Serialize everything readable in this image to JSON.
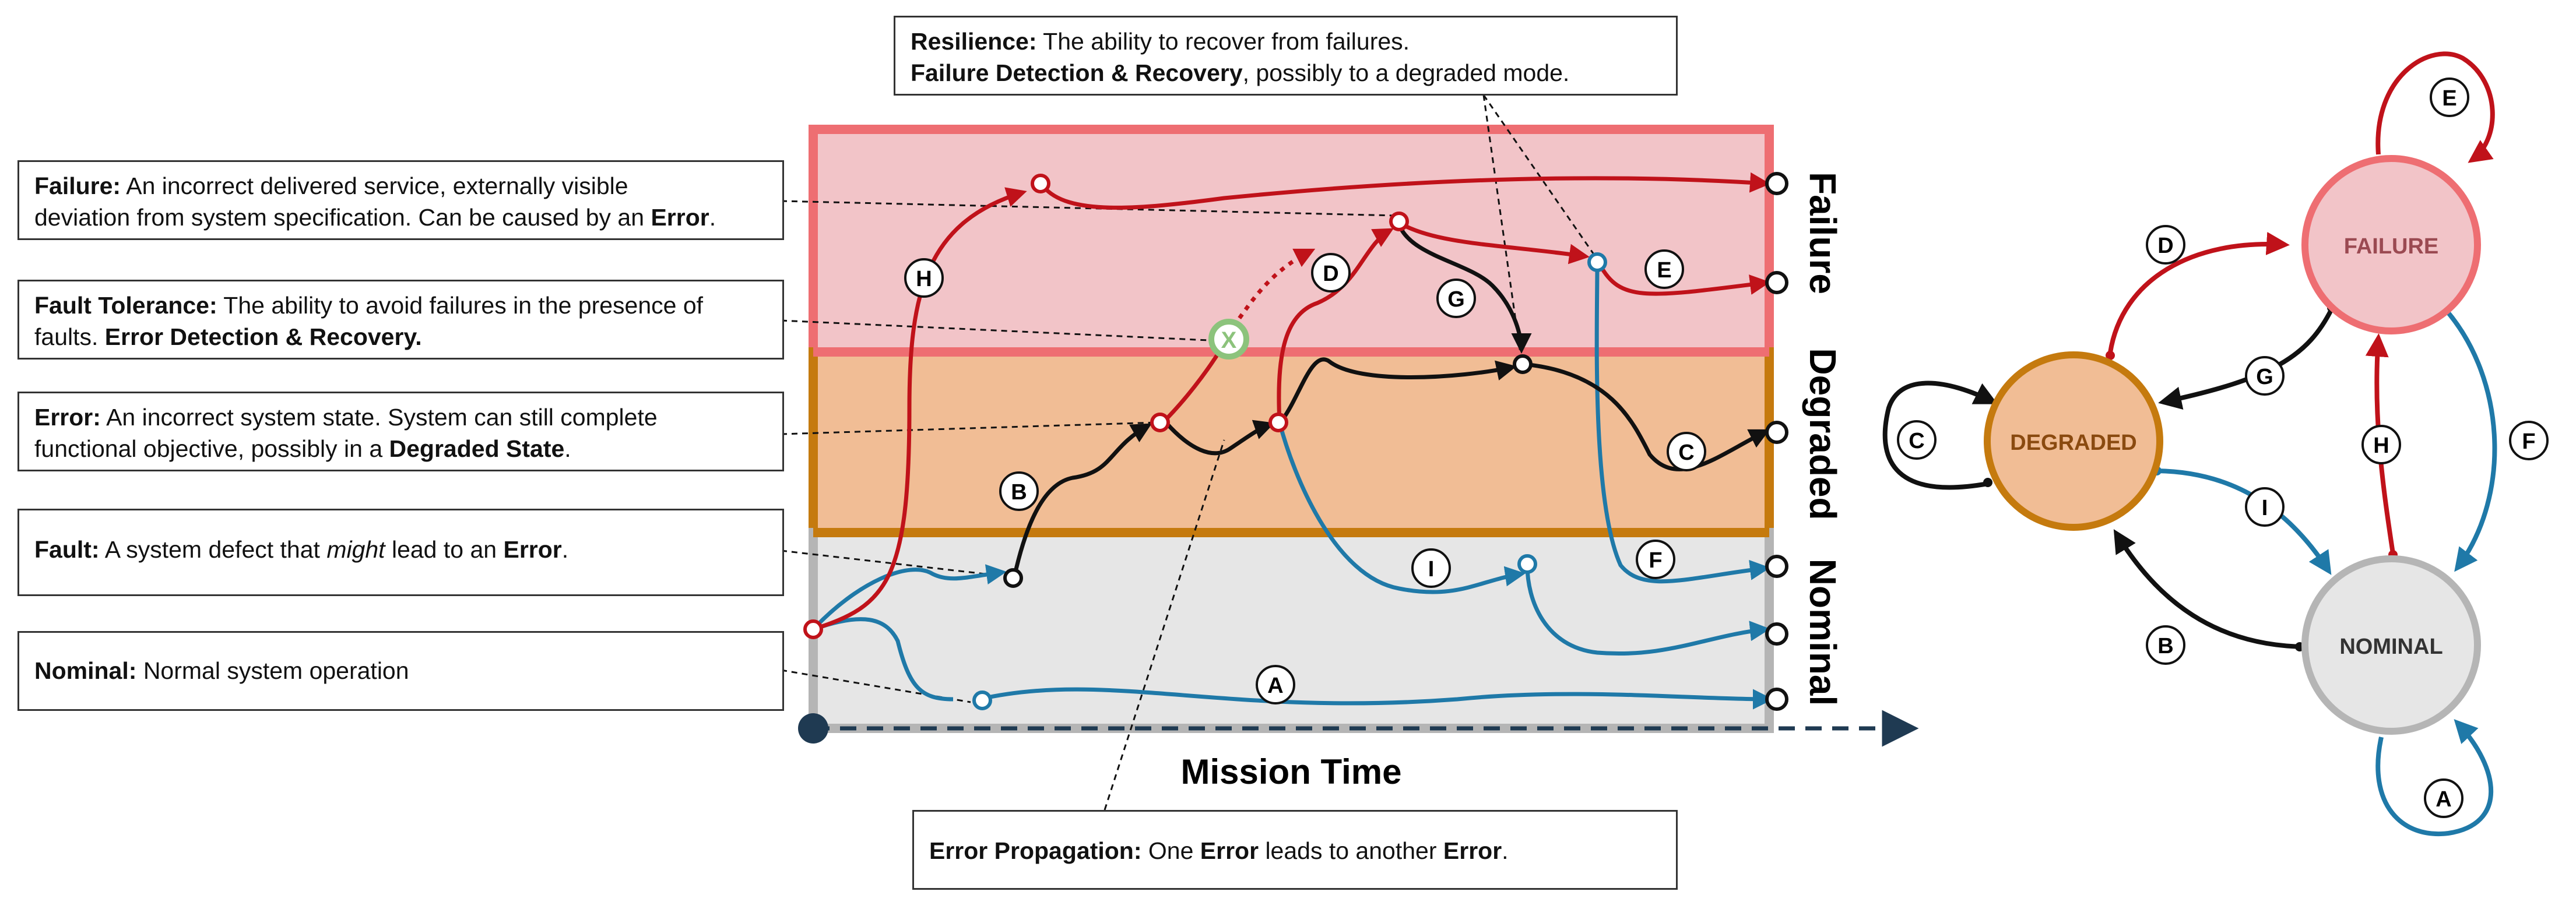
{
  "definitions": {
    "failure": {
      "term": "Failure:",
      "text1": "An incorrect delivered service, externally visible",
      "text2": "deviation from system specification. Can be caused by an ",
      "bold2": "Error",
      "end2": "."
    },
    "fault_tolerance": {
      "term": "Fault Tolerance:",
      "text1": "The ability to avoid failures in the presence of",
      "text2": "faults. ",
      "bold2": "Error Detection & Recovery."
    },
    "error": {
      "term": "Error:",
      "text1": "An incorrect system state. System can still complete",
      "text2": "functional objective, possibly in a ",
      "bold2": "Degraded State",
      "end2": "."
    },
    "fault": {
      "term": "Fault:",
      "pre": "A system defect that ",
      "italic": "might",
      "mid": " lead to an ",
      "bold": "Error",
      "end": "."
    },
    "nominal": {
      "term": "Nominal:",
      "text": "Normal system operation"
    },
    "resilience": {
      "term1": "Resilience:",
      "text1": "The ability to recover from failures.",
      "term2": "Failure Detection & Recovery",
      "text2": ", possibly to a degraded mode."
    },
    "error_propagation": {
      "term": "Error Propagation:",
      "pre": "One ",
      "bold1": "Error",
      "mid": " leads to another ",
      "bold2": "Error",
      "end": "."
    }
  },
  "bands": {
    "failure": "Failure",
    "degraded": "Degraded",
    "nominal": "Nominal"
  },
  "axis": {
    "label": "Mission Time"
  },
  "transitions": {
    "A": "A",
    "B": "B",
    "C": "C",
    "D": "D",
    "E": "E",
    "F": "F",
    "G": "G",
    "H": "H",
    "I": "I",
    "X": "X"
  },
  "states": {
    "failure": "FAILURE",
    "degraded": "DEGRADED",
    "nominal": "NOMINAL"
  },
  "colors": {
    "failure_band": "#f2c4c8",
    "failure_border": "#ee6e72",
    "degraded_band": "#f1bd95",
    "degraded_border": "#c57a0e",
    "nominal_band": "#e6e6e6",
    "nominal_border": "#b5b5b5",
    "red": "#c0121a",
    "blue": "#1f79a8",
    "black": "#111111",
    "green": "#8cc37c",
    "axis": "#1f3a52"
  }
}
